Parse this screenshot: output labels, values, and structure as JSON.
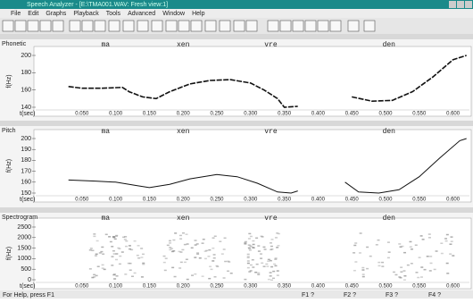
{
  "window": {
    "title": "Speech Analyzer - [E:\\TMA001.WAV: Fresh view:1]",
    "menu": [
      "File",
      "Edit",
      "Graphs",
      "Playback",
      "Tools",
      "Advanced",
      "Window",
      "Help"
    ]
  },
  "panels": [
    {
      "label": "Phonetic",
      "syllables": [
        "ma",
        "xen",
        "vre",
        "den"
      ],
      "y_label": "f(Hz)",
      "yticks": [
        200,
        180,
        160,
        140
      ],
      "x_label": "t(sec)",
      "xticks": [
        "0.050",
        "0.100",
        "0.150",
        "0.200",
        "0.250",
        "0.300",
        "0.350",
        "0.400",
        "0.450",
        "0.500",
        "0.550",
        "0.600"
      ],
      "pitch": {
        "t": [
          0.03,
          0.05,
          0.08,
          0.11,
          0.12,
          0.14,
          0.16,
          0.18,
          0.21,
          0.24,
          0.27,
          0.3,
          0.32,
          0.34,
          0.35,
          0.37,
          null,
          0.45,
          0.48,
          0.51,
          0.54,
          0.57,
          0.6,
          0.62
        ],
        "f": [
          164,
          162,
          162,
          163,
          158,
          152,
          150,
          158,
          167,
          171,
          172,
          168,
          160,
          150,
          140,
          141,
          null,
          152,
          147,
          148,
          158,
          175,
          195,
          200
        ]
      }
    },
    {
      "label": "Pitch",
      "syllables": [
        "ma",
        "xen",
        "vre",
        "den"
      ],
      "y_label": "f(Hz)",
      "yticks": [
        200,
        190,
        180,
        170,
        160,
        150
      ],
      "x_label": "t(sec)",
      "xticks": [
        "0.050",
        "0.100",
        "0.150",
        "0.200",
        "0.250",
        "0.300",
        "0.350",
        "0.400",
        "0.450",
        "0.500",
        "0.550",
        "0.600"
      ],
      "pitch": {
        "t": [
          0.03,
          0.07,
          0.1,
          0.13,
          0.15,
          0.18,
          0.21,
          0.25,
          0.28,
          0.31,
          0.34,
          0.36,
          0.37,
          null,
          0.44,
          0.46,
          0.49,
          0.52,
          0.55,
          0.58,
          0.61,
          0.62
        ],
        "f": [
          162,
          161,
          160,
          157,
          155,
          158,
          163,
          167,
          165,
          159,
          151,
          150,
          152,
          null,
          160,
          151,
          150,
          153,
          165,
          182,
          198,
          200
        ]
      }
    },
    {
      "label": "Spectrogram",
      "syllables": [
        "ma",
        "xen",
        "vre",
        "den"
      ],
      "y_label": "f(Hz)",
      "yticks": [
        2500,
        2000,
        1500,
        1000,
        500,
        0
      ],
      "x_label": "t(sec)",
      "xticks": [
        "0.050",
        "0.100",
        "0.150",
        "0.200",
        "0.250",
        "0.300",
        "0.350",
        "0.400",
        "0.450",
        "0.500",
        "0.550",
        "0.600"
      ]
    }
  ],
  "status": {
    "help": "For Help, press F1",
    "keys": [
      "F1 ?",
      "F2 ?",
      "F3 ?",
      "F4 ?"
    ]
  }
}
